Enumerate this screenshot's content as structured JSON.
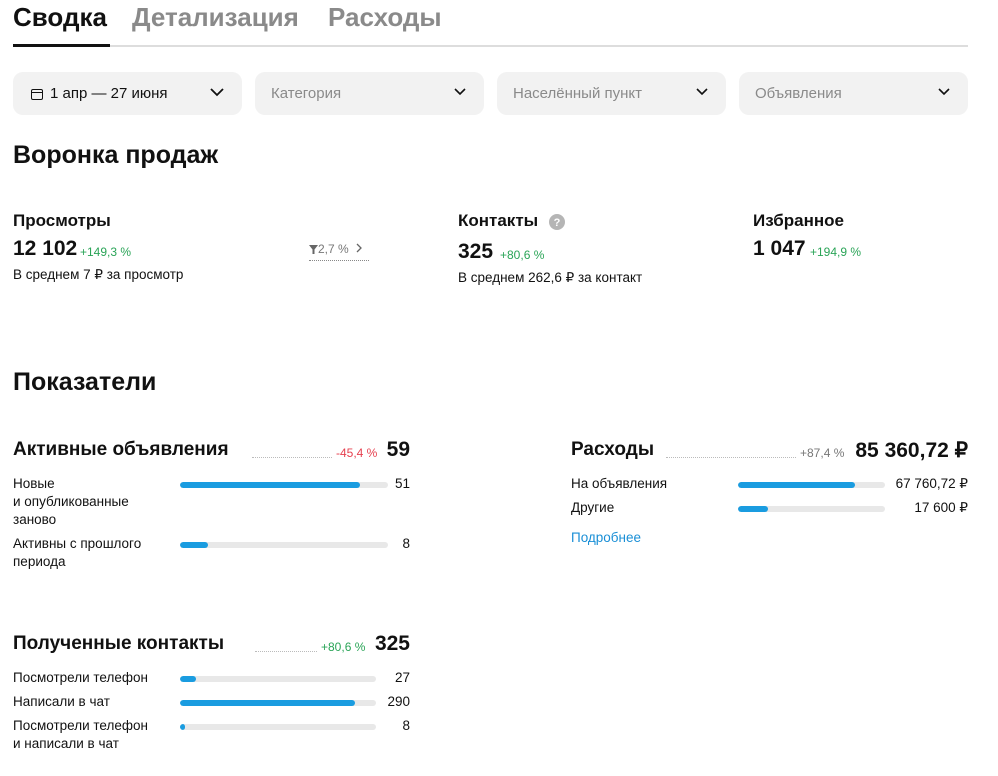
{
  "tabs": [
    "Сводка",
    "Детализация",
    "Расходы"
  ],
  "filters": {
    "period": "1 апр — 27 июня",
    "category": "Категория",
    "locality": "Населённый пункт",
    "listings": "Объявления"
  },
  "funnel": {
    "title": "Воронка продаж",
    "views": {
      "label": "Просмотры",
      "value": "12 102",
      "change": "+149,3 %",
      "conversion": "2,7 %",
      "note": "В среднем 7 ₽ за просмотр"
    },
    "contacts": {
      "label": "Контакты",
      "value": "325",
      "change": "+80,6 %",
      "note": "В среднем 262,6 ₽ за контакт"
    },
    "favorites": {
      "label": "Избранное",
      "value": "1 047",
      "change": "+194,9 %"
    }
  },
  "metrics": {
    "title": "Показатели",
    "active_listings": {
      "title": "Активные объявления",
      "change": "-45,4 %",
      "total": 59,
      "rows": [
        {
          "label": "Новые и опубликованные заново",
          "value": 51
        },
        {
          "label": "Активны с прошлого периода",
          "value": 8
        }
      ]
    },
    "expenses": {
      "title": "Расходы",
      "change": "+87,4 %",
      "total": {
        "value": 85360.72,
        "label": "85 360,72 ₽"
      },
      "rows": [
        {
          "label": "На объявления",
          "value": {
            "value": 67760.72,
            "label": "67 760,72 ₽"
          }
        },
        {
          "label": "Другие",
          "value": {
            "value": 17600,
            "label": "17 600 ₽"
          }
        }
      ],
      "link": "Подробнее"
    },
    "contacts": {
      "title": "Полученные контакты",
      "change": "+80,6 %",
      "total": 325,
      "rows": [
        {
          "label": "Посмотрели телефон",
          "value": 27
        },
        {
          "label": "Написали в чат",
          "value": 290
        },
        {
          "label": "Посмотрели телефон и написали в чат",
          "value": 8
        }
      ]
    }
  }
}
